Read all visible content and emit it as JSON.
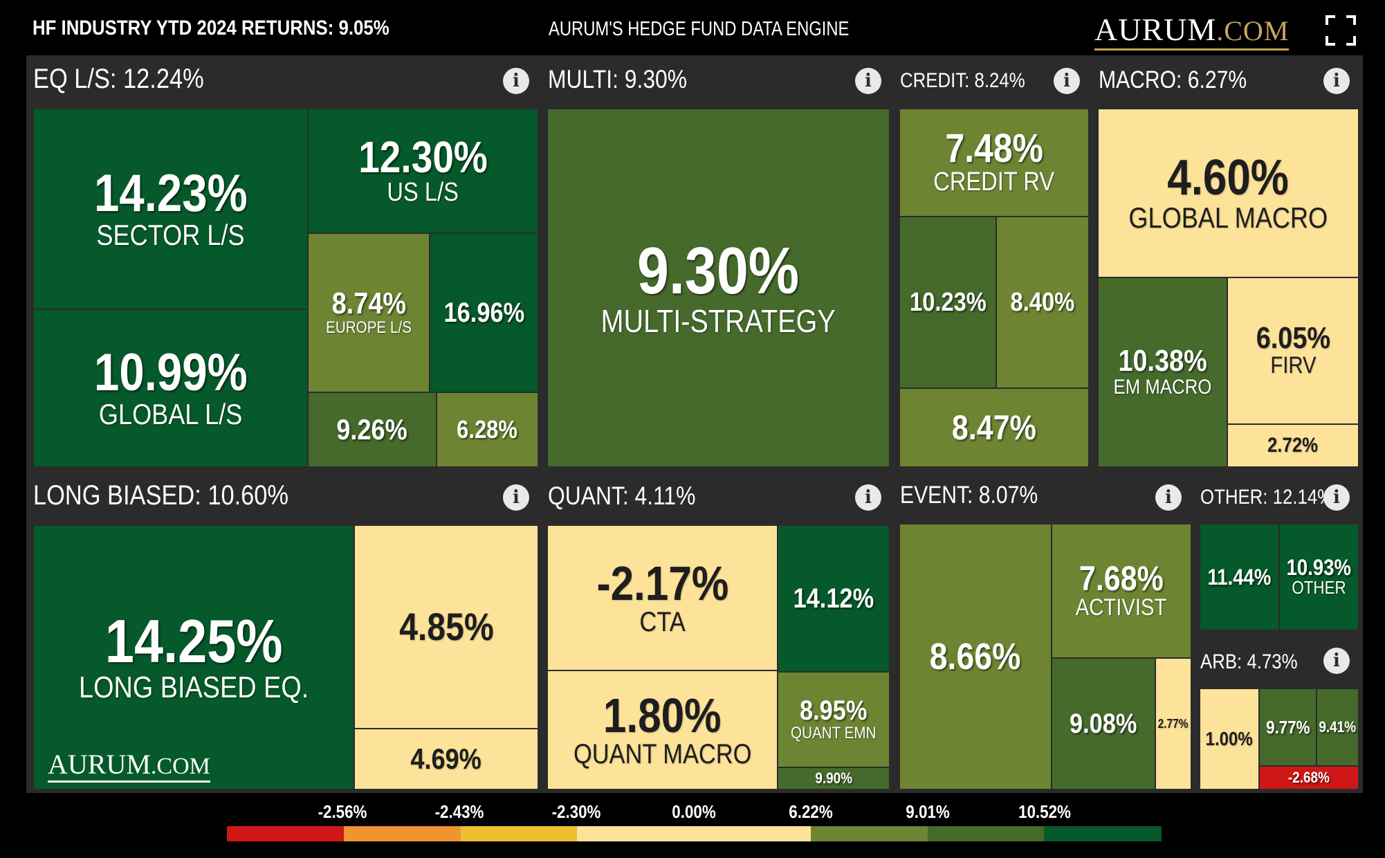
{
  "header": {
    "industry_returns": "HF INDUSTRY YTD 2024 RETURNS: 9.05%",
    "engine_title": "AURUM'S HEDGE FUND DATA ENGINE",
    "logo_main": "AURUM",
    "logo_domain": ".COM"
  },
  "watermark": {
    "main": "AURUM",
    "domain": ".COM"
  },
  "colors": {
    "dark_green": "#05592a",
    "mid_green": "#456a2c",
    "olive": "#6d8532",
    "light_yellow": "#fde39a",
    "red": "#d01717",
    "panel": "#2b2b2b"
  },
  "chart_data": {
    "type": "treemap",
    "title": "HF INDUSTRY YTD 2024 RETURNS: 9.05%",
    "unit": "%",
    "groups": [
      {
        "name": "EQ L/S",
        "return": 12.24,
        "label": "EQ L/S: 12.24%",
        "children": [
          {
            "label": "SECTOR L/S",
            "return": 14.23,
            "text": "14.23%"
          },
          {
            "label": "GLOBAL L/S",
            "return": 10.99,
            "text": "10.99%"
          },
          {
            "label": "US L/S",
            "return": 12.3,
            "text": "12.30%"
          },
          {
            "label": "EUROPE L/S",
            "return": 8.74,
            "text": "8.74%"
          },
          {
            "label": "",
            "return": 16.96,
            "text": "16.96%"
          },
          {
            "label": "",
            "return": 9.26,
            "text": "9.26%"
          },
          {
            "label": "",
            "return": 6.28,
            "text": "6.28%"
          }
        ]
      },
      {
        "name": "MULTI",
        "return": 9.3,
        "label": "MULTI: 9.30%",
        "children": [
          {
            "label": "MULTI-STRATEGY",
            "return": 9.3,
            "text": "9.30%"
          }
        ]
      },
      {
        "name": "CREDIT",
        "return": 8.24,
        "label": "CREDIT: 8.24%",
        "children": [
          {
            "label": "CREDIT RV",
            "return": 7.48,
            "text": "7.48%"
          },
          {
            "label": "",
            "return": 10.23,
            "text": "10.23%"
          },
          {
            "label": "",
            "return": 8.4,
            "text": "8.40%"
          },
          {
            "label": "",
            "return": 8.47,
            "text": "8.47%"
          }
        ]
      },
      {
        "name": "MACRO",
        "return": 6.27,
        "label": "MACRO: 6.27%",
        "children": [
          {
            "label": "GLOBAL MACRO",
            "return": 4.6,
            "text": "4.60%"
          },
          {
            "label": "EM MACRO",
            "return": 10.38,
            "text": "10.38%"
          },
          {
            "label": "FIRV",
            "return": 6.05,
            "text": "6.05%"
          },
          {
            "label": "",
            "return": 2.72,
            "text": "2.72%"
          }
        ]
      },
      {
        "name": "LONG BIASED",
        "return": 10.6,
        "label": "LONG BIASED: 10.60%",
        "children": [
          {
            "label": "LONG BIASED EQ.",
            "return": 14.25,
            "text": "14.25%"
          },
          {
            "label": "",
            "return": 4.85,
            "text": "4.85%"
          },
          {
            "label": "",
            "return": 4.69,
            "text": "4.69%"
          }
        ]
      },
      {
        "name": "QUANT",
        "return": 4.11,
        "label": "QUANT: 4.11%",
        "children": [
          {
            "label": "CTA",
            "return": -2.17,
            "text": "-2.17%"
          },
          {
            "label": "QUANT MACRO",
            "return": 1.8,
            "text": "1.80%"
          },
          {
            "label": "",
            "return": 14.12,
            "text": "14.12%"
          },
          {
            "label": "QUANT EMN",
            "return": 8.95,
            "text": "8.95%"
          },
          {
            "label": "",
            "return": 9.9,
            "text": "9.90%"
          }
        ]
      },
      {
        "name": "EVENT",
        "return": 8.07,
        "label": "EVENT: 8.07%",
        "children": [
          {
            "label": "",
            "return": 8.66,
            "text": "8.66%"
          },
          {
            "label": "ACTIVIST",
            "return": 7.68,
            "text": "7.68%"
          },
          {
            "label": "",
            "return": 9.08,
            "text": "9.08%"
          },
          {
            "label": "",
            "return": 2.77,
            "text": "2.77%"
          }
        ]
      },
      {
        "name": "OTHER",
        "return": 12.14,
        "label": "OTHER: 12.14%",
        "children": [
          {
            "label": "",
            "return": 11.44,
            "text": "11.44%"
          },
          {
            "label": "OTHER",
            "return": 10.93,
            "text": "10.93%"
          }
        ]
      },
      {
        "name": "ARB",
        "return": 4.73,
        "label": "ARB: 4.73%",
        "children": [
          {
            "label": "",
            "return": 1.0,
            "text": "1.00%"
          },
          {
            "label": "",
            "return": 9.77,
            "text": "9.77%"
          },
          {
            "label": "",
            "return": 9.41,
            "text": "9.41%"
          },
          {
            "label": "",
            "return": -2.68,
            "text": "-2.68%"
          }
        ]
      }
    ],
    "legend": {
      "thresholds": [
        "-2.56%",
        "-2.43%",
        "-2.30%",
        "0.00%",
        "6.22%",
        "9.01%",
        "10.52%"
      ],
      "colors": [
        "#d01717",
        "#d01717",
        "#f09432",
        "#f09432",
        "#eebf32",
        "#eebf32",
        "#fde39a",
        "#fde39a",
        "#fde39a",
        "#fde39a",
        "#6d8532",
        "#6d8532",
        "#456a2c",
        "#456a2c",
        "#05592a",
        "#05592a"
      ]
    }
  }
}
